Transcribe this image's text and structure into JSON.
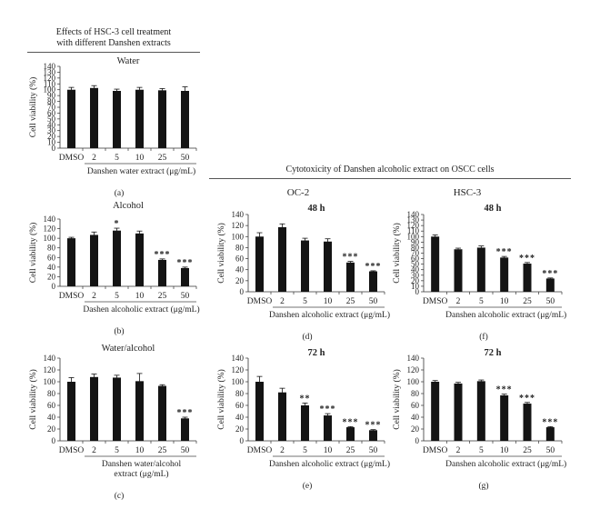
{
  "headers": {
    "left_line1": "Effects of HSC-3 cell treatment",
    "left_line2": "with different Danshen extracts",
    "right": "Cytotoxicity of Danshen alcoholic extract on OSCC cells",
    "oc2": "OC-2",
    "hsc3": "HSC-3"
  },
  "chart_data": [
    {
      "id": "a",
      "type": "bar",
      "panel_label": "(a)",
      "title": "Water",
      "ylabel": "Cell viability (%)",
      "xlabel": [
        "Danshen water extract (μg/mL)"
      ],
      "categories": [
        "DMSO",
        "2",
        "5",
        "10",
        "25",
        "50"
      ],
      "values": [
        100,
        103,
        98,
        100,
        99,
        98
      ],
      "errors": [
        4,
        4,
        3,
        4,
        3,
        7
      ],
      "significance": [
        "",
        "",
        "",
        "",
        "",
        ""
      ],
      "ylim": [
        0,
        140
      ],
      "yticks": [
        0,
        10,
        20,
        30,
        40,
        50,
        60,
        70,
        80,
        90,
        100,
        110,
        120,
        130,
        140
      ]
    },
    {
      "id": "b",
      "type": "bar",
      "panel_label": "(b)",
      "title": "Alcohol",
      "ylabel": "Cell viability (%)",
      "xlabel": [
        "Dashen alcoholic extract (μg/mL)"
      ],
      "categories": [
        "DMSO",
        "2",
        "5",
        "10",
        "25",
        "50"
      ],
      "values": [
        100,
        107,
        116,
        110,
        55,
        38
      ],
      "errors": [
        2,
        6,
        5,
        5,
        2,
        2
      ],
      "significance": [
        "",
        "",
        "*",
        "",
        "***",
        "***"
      ],
      "ylim": [
        0,
        140
      ],
      "yticks": [
        0,
        20,
        40,
        60,
        80,
        100,
        120,
        140
      ]
    },
    {
      "id": "c",
      "type": "bar",
      "panel_label": "(c)",
      "title": "Water/alcohol",
      "ylabel": "Cell viability (%)",
      "xlabel": [
        "Danshen water/alcohol",
        "extract (μg/mL)"
      ],
      "categories": [
        "DMSO",
        "2",
        "5",
        "10",
        "25",
        "50"
      ],
      "values": [
        100,
        108,
        107,
        101,
        93,
        38
      ],
      "errors": [
        7,
        5,
        4,
        13,
        2,
        2
      ],
      "significance": [
        "",
        "",
        "",
        "",
        "",
        "***"
      ],
      "ylim": [
        0,
        140
      ],
      "yticks": [
        0,
        20,
        40,
        60,
        80,
        100,
        120,
        140
      ]
    },
    {
      "id": "d",
      "type": "bar",
      "panel_label": "(d)",
      "title": "48 h",
      "ylabel": "Cell viability (%)",
      "xlabel": [
        "Danshen alcoholic extract (μg/mL)"
      ],
      "categories": [
        "DMSO",
        "2",
        "5",
        "10",
        "25",
        "50"
      ],
      "values": [
        100,
        117,
        93,
        91,
        53,
        37
      ],
      "errors": [
        7,
        6,
        4,
        5,
        2,
        1
      ],
      "significance": [
        "",
        "",
        "",
        "",
        "***",
        "***"
      ],
      "ylim": [
        0,
        140
      ],
      "yticks": [
        0,
        20,
        40,
        60,
        80,
        100,
        120,
        140
      ]
    },
    {
      "id": "f",
      "type": "bar",
      "panel_label": "(f)",
      "title": "48 h",
      "ylabel": "Cell viability (%)",
      "xlabel": [
        "Danshen alcoholic extract (μg/mL)"
      ],
      "categories": [
        "DMSO",
        "2",
        "5",
        "10",
        "25",
        "50"
      ],
      "values": [
        100,
        77,
        80,
        62,
        51,
        24
      ],
      "errors": [
        3,
        2,
        3,
        2,
        2,
        1
      ],
      "significance": [
        "",
        "",
        "",
        "***",
        "***",
        "***"
      ],
      "ylim": [
        0,
        140
      ],
      "yticks": [
        0,
        10,
        20,
        30,
        40,
        50,
        60,
        70,
        80,
        90,
        100,
        110,
        120,
        130,
        140
      ]
    },
    {
      "id": "e",
      "type": "bar",
      "panel_label": "(e)",
      "title": "72 h",
      "ylabel": "Cell viability (%)",
      "xlabel": [
        "Danshen alcoholic extract (μg/mL)"
      ],
      "categories": [
        "DMSO",
        "2",
        "5",
        "10",
        "25",
        "50"
      ],
      "values": [
        100,
        82,
        60,
        43,
        23,
        18
      ],
      "errors": [
        9,
        7,
        4,
        3,
        1,
        1
      ],
      "significance": [
        "",
        "",
        "**",
        "***",
        "***",
        "***"
      ],
      "ylim": [
        0,
        140
      ],
      "yticks": [
        0,
        20,
        40,
        60,
        80,
        100,
        120,
        140
      ]
    },
    {
      "id": "g",
      "type": "bar",
      "panel_label": "(g)",
      "title": "72 h",
      "ylabel": "Cell viability (%)",
      "xlabel": [
        "Danshen alcoholic extract (μg/mL)"
      ],
      "categories": [
        "DMSO",
        "2",
        "5",
        "10",
        "25",
        "50"
      ],
      "values": [
        100,
        97,
        101,
        77,
        63,
        23
      ],
      "errors": [
        2,
        2,
        2,
        2,
        2,
        1
      ],
      "significance": [
        "",
        "",
        "",
        "***",
        "***",
        "***"
      ],
      "ylim": [
        0,
        140
      ],
      "yticks": [
        0,
        20,
        40,
        60,
        80,
        100,
        120,
        140
      ]
    }
  ]
}
